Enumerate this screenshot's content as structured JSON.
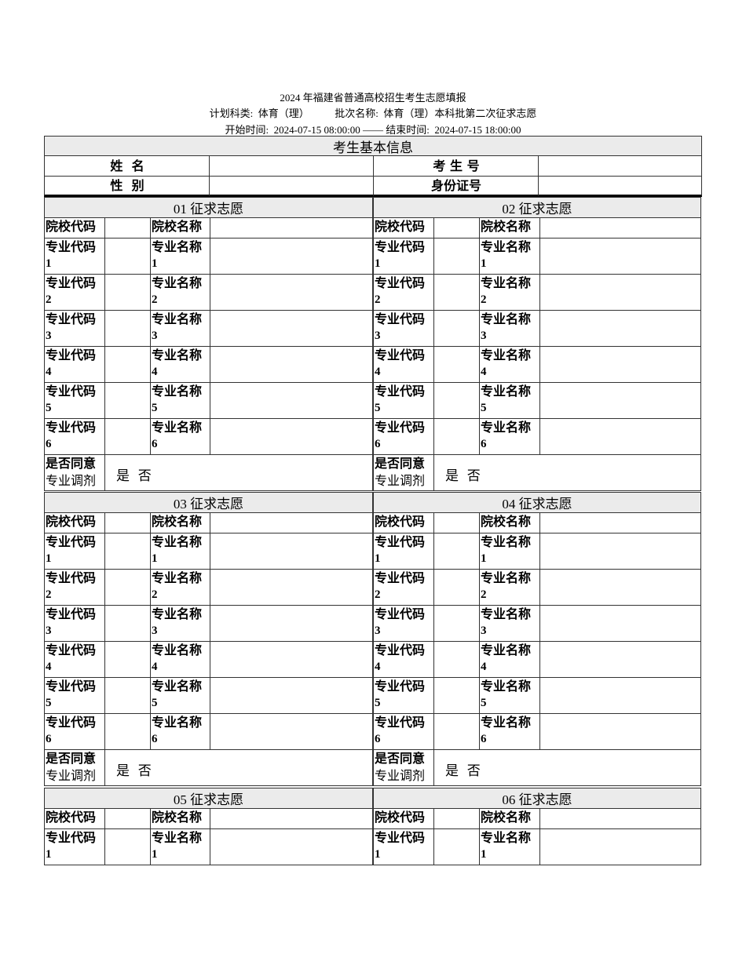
{
  "header": {
    "title": "2024 年福建省普通高校招生考生志愿填报",
    "line2": "计划科类:  体育（理）          批次名称:  体育（理）本科批第二次征求志愿",
    "line3": "开始时间:  2024-07-15 08:00:00 —— 结束时间:  2024-07-15 18:00:00"
  },
  "basic_info": {
    "title": "考生基本信息",
    "name_label": "姓  名",
    "exam_no_label": "考 生 号",
    "gender_label": "性  别",
    "id_label": "身份证号"
  },
  "labels": {
    "school_code": "院校代码",
    "school_name": "院校名称",
    "major_code": "专业代码",
    "major_name": "专业名称",
    "adjust_line1": "是否同意",
    "adjust_line2": "专业调剂",
    "adjust_options": "是  否"
  },
  "blocks": [
    {
      "title": "01 征求志愿",
      "rows": [
        "1",
        "2",
        "3",
        "4",
        "5",
        "6"
      ]
    },
    {
      "title": "02 征求志愿",
      "rows": [
        "1",
        "2",
        "3",
        "4",
        "5",
        "6"
      ]
    },
    {
      "title": "03 征求志愿",
      "rows": [
        "1",
        "2",
        "3",
        "4",
        "5",
        "6"
      ]
    },
    {
      "title": "04 征求志愿",
      "rows": [
        "1",
        "2",
        "3",
        "4",
        "5",
        "6"
      ]
    },
    {
      "title": "05 征求志愿",
      "rows": [
        "1"
      ]
    },
    {
      "title": "06 征求志愿",
      "rows": [
        "1"
      ]
    }
  ]
}
